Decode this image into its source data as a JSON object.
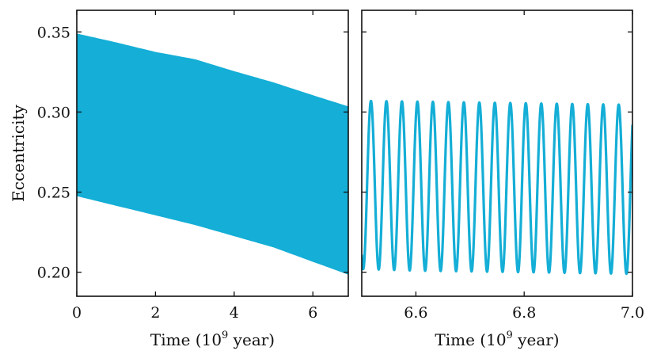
{
  "chart_data": [
    {
      "type": "area",
      "panel": "left",
      "xlabel": "Time (10",
      "xlabel_sup": "9",
      "xlabel_suffix": " year)",
      "ylabel": "Eccentricity",
      "xlim": [
        0,
        6.9
      ],
      "ylim": [
        0.185,
        0.3635
      ],
      "xticks": [
        0,
        2,
        4,
        6
      ],
      "xtick_labels": [
        "0",
        "2",
        "4",
        "6"
      ],
      "yticks": [
        0.2,
        0.25,
        0.3,
        0.35
      ],
      "ytick_labels": [
        "0.20",
        "0.25",
        "0.30",
        "0.35"
      ],
      "color": "#14aed6",
      "series": [
        {
          "name": "eccentricity envelope",
          "x": [
            0,
            1,
            2,
            3,
            4,
            5,
            6,
            6.9
          ],
          "upper": [
            0.349,
            0.3435,
            0.3375,
            0.333,
            0.3255,
            0.3185,
            0.3105,
            0.3035
          ],
          "lower": [
            0.2475,
            0.2415,
            0.2355,
            0.2295,
            0.2225,
            0.2155,
            0.2065,
            0.1985
          ]
        }
      ]
    },
    {
      "type": "line",
      "panel": "right",
      "xlabel": "Time (10",
      "xlabel_sup": "9",
      "xlabel_suffix": " year)",
      "xlim": [
        6.5,
        7.0
      ],
      "ylim": [
        0.185,
        0.3635
      ],
      "xticks": [
        6.6,
        6.8,
        7.0
      ],
      "xtick_labels": [
        "6.6",
        "6.8",
        "7.0"
      ],
      "yticks": [
        0.2,
        0.25,
        0.3,
        0.35
      ],
      "color": "#14aed6",
      "series": [
        {
          "name": "eccentricity",
          "oscillation_period": 0.0286,
          "first_peak_x": 6.517,
          "x": [
            6.5,
            6.6,
            6.7,
            6.8,
            6.9,
            7.0
          ],
          "max": [
            0.307,
            0.3065,
            0.306,
            0.3055,
            0.305,
            0.3045
          ],
          "min": [
            0.202,
            0.201,
            0.2005,
            0.2,
            0.1995,
            0.199
          ]
        }
      ]
    }
  ]
}
